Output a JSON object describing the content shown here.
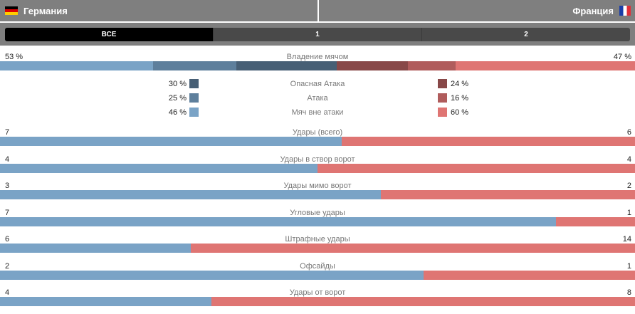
{
  "header": {
    "home_team": "Германия",
    "away_team": "Франция"
  },
  "tabs": [
    {
      "label": "ВСЕ",
      "active": true
    },
    {
      "label": "1",
      "active": false
    },
    {
      "label": "2",
      "active": false
    }
  ],
  "colors": {
    "home_light": "#7aa3c6",
    "home_mid": "#5e7f9c",
    "home_dark": "#475f75",
    "away_dark": "#884848",
    "away_mid": "#b05c5c",
    "away_light": "#df7573"
  },
  "possession": {
    "label": "Владение мячом",
    "home": "53 %",
    "away": "47 %",
    "home_value": 53,
    "away_value": 47,
    "breakdown": [
      {
        "label": "Опасная Атака",
        "home": "30 %",
        "away": "24 %",
        "home_value": 30,
        "away_value": 24
      },
      {
        "label": "Атака",
        "home": "25 %",
        "away": "16 %",
        "home_value": 25,
        "away_value": 16
      },
      {
        "label": "Мяч вне атаки",
        "home": "46 %",
        "away": "60 %",
        "home_value": 46,
        "away_value": 60
      }
    ]
  },
  "stats": [
    {
      "label": "Удары (всего)",
      "home": "7",
      "away": "6"
    },
    {
      "label": "Удары в створ ворот",
      "home": "4",
      "away": "4"
    },
    {
      "label": "Удары мимо ворот",
      "home": "3",
      "away": "2"
    },
    {
      "label": "Угловые удары",
      "home": "7",
      "away": "1"
    },
    {
      "label": "Штрафные удары",
      "home": "6",
      "away": "14"
    },
    {
      "label": "Офсайды",
      "home": "2",
      "away": "1"
    },
    {
      "label": "Удары от ворот",
      "home": "4",
      "away": "8"
    }
  ]
}
